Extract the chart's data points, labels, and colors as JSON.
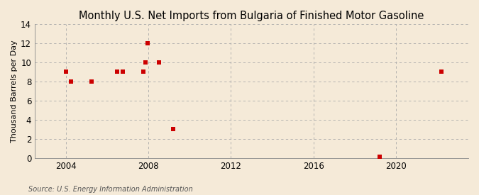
{
  "title": "Monthly U.S. Net Imports from Bulgaria of Finished Motor Gasoline",
  "ylabel": "Thousand Barrels per Day",
  "source": "Source: U.S. Energy Information Administration",
  "background_color": "#f5ead8",
  "plot_bg_color": "#f5ead8",
  "scatter_color": "#cc0000",
  "scatter_x": [
    2004.0,
    2004.25,
    2005.25,
    2006.5,
    2006.75,
    2007.75,
    2007.85,
    2007.95,
    2008.5,
    2009.2,
    2019.2,
    2022.2
  ],
  "scatter_y": [
    9,
    8,
    8,
    9,
    9,
    9,
    10,
    12,
    10,
    3,
    0.15,
    9
  ],
  "xlim": [
    2002.5,
    2023.5
  ],
  "ylim": [
    0,
    14
  ],
  "xticks": [
    2004,
    2008,
    2012,
    2016,
    2020
  ],
  "yticks": [
    0,
    2,
    4,
    6,
    8,
    10,
    12,
    14
  ],
  "grid_color": "#aaaaaa",
  "grid_style": "--",
  "marker": "s",
  "marker_size": 16,
  "title_fontsize": 10.5,
  "label_fontsize": 8,
  "tick_fontsize": 8.5,
  "source_fontsize": 7
}
